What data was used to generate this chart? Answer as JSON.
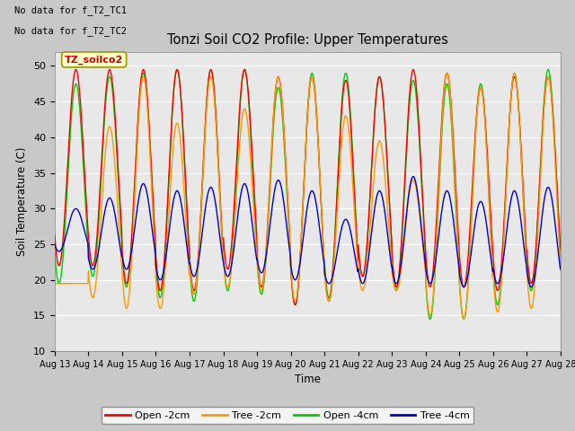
{
  "title": "Tonzi Soil CO2 Profile: Upper Temperatures",
  "xlabel": "Time",
  "ylabel": "Soil Temperature (C)",
  "ylim": [
    10,
    52
  ],
  "yticks": [
    10,
    15,
    20,
    25,
    30,
    35,
    40,
    45,
    50
  ],
  "xtick_labels": [
    "Aug 13",
    "Aug 14",
    "Aug 15",
    "Aug 16",
    "Aug 17",
    "Aug 18",
    "Aug 19",
    "Aug 20",
    "Aug 21",
    "Aug 22",
    "Aug 23",
    "Aug 24",
    "Aug 25",
    "Aug 26",
    "Aug 27",
    "Aug 28"
  ],
  "no_data_text1": "No data for f_T2_TC1",
  "no_data_text2": "No data for f_T2_TC2",
  "legend_box_text": "TZ_soilco2",
  "legend_box_color": "#ffffcc",
  "legend_box_border": "#999900",
  "series_colors": [
    "#ff0000",
    "#ff9900",
    "#00cc00",
    "#0000cc"
  ],
  "series_labels": [
    "Open -2cm",
    "Tree -2cm",
    "Open -4cm",
    "Tree -4cm"
  ],
  "bg_color": "#e8e8e8",
  "grid_color": "#ffffff",
  "n_days": 16,
  "ppd": 96,
  "peak_time": 0.63,
  "open_2cm_peak": [
    49.5,
    49.5,
    49.5,
    49.5,
    49.5,
    49.5,
    48.5,
    48.5,
    48.0,
    48.5,
    49.5,
    49.0,
    47.0,
    48.5,
    48.5,
    48.5
  ],
  "open_2cm_trough": [
    22.0,
    22.0,
    19.5,
    18.5,
    18.5,
    21.5,
    19.0,
    16.5,
    17.0,
    20.5,
    19.0,
    19.0,
    19.0,
    18.5,
    19.5,
    20.0
  ],
  "tree_2cm_peak": [
    19.5,
    41.5,
    48.5,
    42.0,
    48.5,
    44.0,
    48.5,
    48.5,
    43.0,
    39.5,
    34.0,
    49.0,
    47.0,
    49.0,
    48.5,
    48.5
  ],
  "tree_2cm_trough": [
    19.5,
    17.5,
    16.0,
    16.0,
    18.0,
    19.0,
    18.5,
    17.0,
    17.0,
    18.5,
    18.5,
    15.0,
    14.5,
    15.5,
    16.0,
    19.5
  ],
  "open_4cm_peak": [
    47.5,
    48.5,
    49.0,
    49.5,
    49.5,
    49.5,
    47.0,
    49.0,
    49.0,
    48.5,
    48.0,
    47.5,
    47.5,
    49.0,
    49.5,
    49.5
  ],
  "open_4cm_trough": [
    19.5,
    20.5,
    19.0,
    17.5,
    17.0,
    18.5,
    18.0,
    16.5,
    17.5,
    20.5,
    18.5,
    14.5,
    14.5,
    16.5,
    18.5,
    19.5
  ],
  "tree_4cm_peak": [
    30.0,
    31.5,
    33.5,
    32.5,
    33.0,
    33.5,
    34.0,
    32.5,
    28.5,
    32.5,
    34.5,
    32.5,
    31.0,
    32.5,
    33.0,
    33.0
  ],
  "tree_4cm_trough": [
    24.0,
    21.5,
    21.5,
    20.0,
    20.5,
    20.5,
    21.0,
    20.0,
    19.5,
    19.5,
    19.5,
    19.5,
    19.0,
    19.5,
    19.0,
    19.5
  ]
}
